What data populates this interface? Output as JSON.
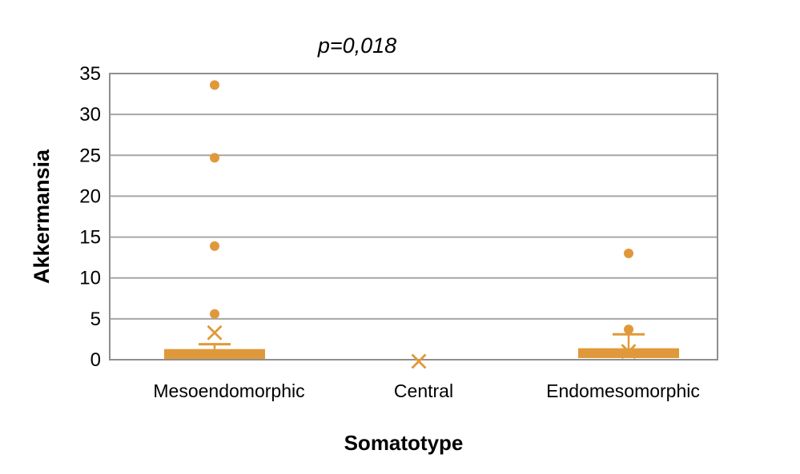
{
  "chart_data": {
    "type": "box",
    "title": "p=0,018",
    "xlabel": "Somatotype",
    "ylabel": "Akkermansia",
    "ylim": [
      0,
      35
    ],
    "yticks": [
      0,
      5,
      10,
      15,
      20,
      25,
      30,
      35
    ],
    "categories": [
      "Mesoendomorphic",
      "Central",
      "Endomesomorphic"
    ],
    "series": [
      {
        "category": "Mesoendomorphic",
        "q1": 0.1,
        "q3": 1.3,
        "whisker_high": 1.9,
        "mean": 3.3,
        "outliers": [
          5.6,
          13.9,
          24.7,
          33.6
        ]
      },
      {
        "category": "Central",
        "q1": null,
        "q3": null,
        "whisker_high": null,
        "mean": -0.2,
        "outliers": []
      },
      {
        "category": "Endomesomorphic",
        "q1": 0.2,
        "q3": 1.4,
        "whisker_high": 3.1,
        "mean": 1.0,
        "outliers": [
          3.7,
          13.0
        ]
      }
    ],
    "grid": true,
    "legend": false,
    "colors": {
      "marker": "#E0993A",
      "gridline": "#A6A6A6",
      "border": "#8F8F8F",
      "text": "#000000"
    }
  }
}
